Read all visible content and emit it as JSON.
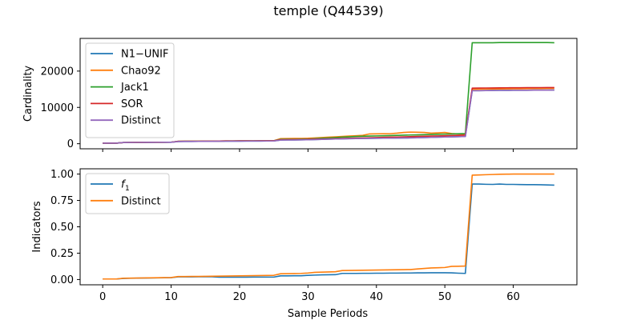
{
  "figure": {
    "title": "temple (Q44539)",
    "colors": {
      "blue": "#1f77b4",
      "orange": "#ff7f0e",
      "green": "#2ca02c",
      "red": "#d62728",
      "purple": "#9467bd"
    }
  },
  "chart_data": [
    {
      "type": "line",
      "xlabel": "",
      "ylabel": "Cardinality",
      "xlim": [
        -3.3,
        69.3
      ],
      "ylim": [
        -1400,
        29000
      ],
      "x_ticks": [
        0,
        10,
        20,
        30,
        40,
        50,
        60
      ],
      "y_ticks": [
        0,
        10000,
        20000
      ],
      "x_ticklabels_visible": false,
      "legend": "top-left",
      "grid": false,
      "x": [
        0,
        1,
        2,
        3,
        4,
        5,
        6,
        7,
        8,
        9,
        10,
        11,
        12,
        13,
        14,
        15,
        16,
        17,
        18,
        19,
        20,
        21,
        22,
        23,
        24,
        25,
        26,
        27,
        28,
        29,
        30,
        31,
        32,
        33,
        34,
        35,
        36,
        37,
        38,
        39,
        40,
        41,
        42,
        43,
        44,
        45,
        46,
        47,
        48,
        49,
        50,
        51,
        52,
        53,
        54,
        55,
        56,
        57,
        58,
        59,
        60,
        61,
        62,
        63,
        64,
        65,
        66
      ],
      "series": [
        {
          "name": "N1−UNIF",
          "color": "#1f77b4",
          "values": [
            150,
            150,
            150,
            320,
            350,
            360,
            370,
            380,
            390,
            400,
            410,
            600,
            620,
            630,
            640,
            650,
            660,
            670,
            690,
            700,
            710,
            720,
            730,
            740,
            750,
            760,
            1000,
            1020,
            1040,
            1060,
            1100,
            1150,
            1200,
            1250,
            1300,
            1350,
            1400,
            1420,
            1450,
            1480,
            1500,
            1520,
            1540,
            1560,
            1580,
            1600,
            1650,
            1700,
            1750,
            1800,
            1850,
            1900,
            1950,
            2000,
            14600,
            14620,
            14640,
            14660,
            14680,
            14700,
            14710,
            14720,
            14730,
            14740,
            14750,
            14760,
            14770
          ]
        },
        {
          "name": "Chao92",
          "color": "#ff7f0e",
          "values": [
            150,
            150,
            150,
            330,
            360,
            370,
            380,
            390,
            400,
            410,
            420,
            650,
            670,
            680,
            690,
            700,
            720,
            740,
            760,
            770,
            780,
            790,
            800,
            810,
            820,
            830,
            1400,
            1420,
            1440,
            1460,
            1500,
            1600,
            1700,
            1800,
            1900,
            2000,
            2100,
            2200,
            2300,
            2700,
            2720,
            2740,
            2760,
            2900,
            3100,
            3200,
            3150,
            3100,
            2900,
            3000,
            3100,
            2800,
            2700,
            2600,
            15000,
            15020,
            15040,
            15060,
            15080,
            15100,
            15120,
            15140,
            15160,
            15180,
            15200,
            15220,
            15240
          ]
        },
        {
          "name": "Jack1",
          "color": "#2ca02c",
          "values": [
            150,
            150,
            150,
            330,
            360,
            370,
            380,
            390,
            400,
            410,
            420,
            650,
            670,
            680,
            690,
            700,
            720,
            740,
            760,
            770,
            780,
            790,
            800,
            810,
            820,
            830,
            1200,
            1220,
            1240,
            1260,
            1300,
            1400,
            1500,
            1600,
            1700,
            1800,
            1900,
            2000,
            2050,
            2100,
            2150,
            2200,
            2250,
            2300,
            2350,
            2400,
            2450,
            2500,
            2550,
            2600,
            2650,
            2700,
            2750,
            2800,
            27800,
            27800,
            27800,
            27800,
            27850,
            27850,
            27850,
            27850,
            27850,
            27850,
            27850,
            27850,
            27800
          ]
        },
        {
          "name": "SOR",
          "color": "#d62728",
          "values": [
            150,
            150,
            150,
            330,
            360,
            370,
            380,
            390,
            400,
            410,
            420,
            650,
            670,
            680,
            690,
            700,
            720,
            740,
            760,
            770,
            780,
            790,
            800,
            810,
            820,
            830,
            1100,
            1120,
            1140,
            1160,
            1200,
            1250,
            1300,
            1350,
            1400,
            1450,
            1500,
            1550,
            1600,
            1650,
            1700,
            1750,
            1800,
            1850,
            1900,
            1950,
            2000,
            2050,
            2100,
            2150,
            2200,
            2250,
            2300,
            2350,
            15300,
            15320,
            15340,
            15360,
            15380,
            15400,
            15410,
            15420,
            15430,
            15440,
            15450,
            15460,
            15470
          ]
        },
        {
          "name": "Distinct",
          "color": "#9467bd",
          "values": [
            150,
            150,
            150,
            320,
            350,
            360,
            370,
            380,
            390,
            400,
            410,
            600,
            620,
            630,
            640,
            650,
            660,
            670,
            690,
            700,
            710,
            720,
            730,
            740,
            750,
            760,
            1000,
            1020,
            1040,
            1060,
            1100,
            1150,
            1200,
            1250,
            1300,
            1350,
            1400,
            1420,
            1450,
            1480,
            1500,
            1520,
            1540,
            1560,
            1580,
            1600,
            1650,
            1700,
            1750,
            1800,
            1850,
            1900,
            1950,
            2000,
            14600,
            14620,
            14640,
            14660,
            14680,
            14700,
            14710,
            14720,
            14730,
            14740,
            14750,
            14760,
            14770
          ]
        }
      ]
    },
    {
      "type": "line",
      "xlabel": "Sample Periods",
      "ylabel": "Indicators",
      "xlim": [
        -3.3,
        69.3
      ],
      "ylim": [
        -0.05,
        1.05
      ],
      "x_ticks": [
        0,
        10,
        20,
        30,
        40,
        50,
        60
      ],
      "y_ticks": [
        0.0,
        0.25,
        0.5,
        0.75,
        1.0
      ],
      "y_ticklabels": [
        "0.00",
        "0.25",
        "0.50",
        "0.75",
        "1.00"
      ],
      "x_ticklabels": [
        "0",
        "10",
        "20",
        "30",
        "40",
        "50",
        "60"
      ],
      "legend": "top-left",
      "grid": false,
      "x": [
        0,
        1,
        2,
        3,
        4,
        5,
        6,
        7,
        8,
        9,
        10,
        11,
        12,
        13,
        14,
        15,
        16,
        17,
        18,
        19,
        20,
        21,
        22,
        23,
        24,
        25,
        26,
        27,
        28,
        29,
        30,
        31,
        32,
        33,
        34,
        35,
        36,
        37,
        38,
        39,
        40,
        41,
        42,
        43,
        44,
        45,
        46,
        47,
        48,
        49,
        50,
        51,
        52,
        53,
        54,
        55,
        56,
        57,
        58,
        59,
        60,
        61,
        62,
        63,
        64,
        65,
        66
      ],
      "series": [
        {
          "name": "f",
          "name_subscript": "1",
          "color": "#1f77b4",
          "values": [
            0.005,
            0.005,
            0.005,
            0.01,
            0.012,
            0.013,
            0.014,
            0.015,
            0.016,
            0.017,
            0.018,
            0.025,
            0.025,
            0.025,
            0.026,
            0.026,
            0.026,
            0.022,
            0.022,
            0.022,
            0.022,
            0.022,
            0.023,
            0.023,
            0.023,
            0.023,
            0.035,
            0.035,
            0.036,
            0.036,
            0.04,
            0.042,
            0.044,
            0.045,
            0.046,
            0.058,
            0.058,
            0.058,
            0.059,
            0.059,
            0.06,
            0.06,
            0.061,
            0.061,
            0.062,
            0.062,
            0.063,
            0.063,
            0.064,
            0.064,
            0.064,
            0.063,
            0.06,
            0.058,
            0.905,
            0.905,
            0.903,
            0.902,
            0.905,
            0.902,
            0.902,
            0.901,
            0.9,
            0.9,
            0.899,
            0.897,
            0.895
          ]
        },
        {
          "name": "Distinct",
          "color": "#ff7f0e",
          "values": [
            0.005,
            0.005,
            0.005,
            0.012,
            0.013,
            0.014,
            0.015,
            0.016,
            0.017,
            0.018,
            0.019,
            0.028,
            0.028,
            0.029,
            0.029,
            0.03,
            0.031,
            0.032,
            0.033,
            0.034,
            0.035,
            0.036,
            0.037,
            0.038,
            0.039,
            0.04,
            0.055,
            0.056,
            0.057,
            0.058,
            0.062,
            0.068,
            0.07,
            0.072,
            0.074,
            0.085,
            0.086,
            0.087,
            0.088,
            0.089,
            0.09,
            0.091,
            0.092,
            0.093,
            0.094,
            0.095,
            0.1,
            0.105,
            0.11,
            0.112,
            0.114,
            0.125,
            0.126,
            0.128,
            0.99,
            0.992,
            0.994,
            0.996,
            0.998,
            0.999,
            1.0,
            1.0,
            1.0,
            1.0,
            1.0,
            1.0,
            1.0
          ]
        }
      ]
    }
  ]
}
